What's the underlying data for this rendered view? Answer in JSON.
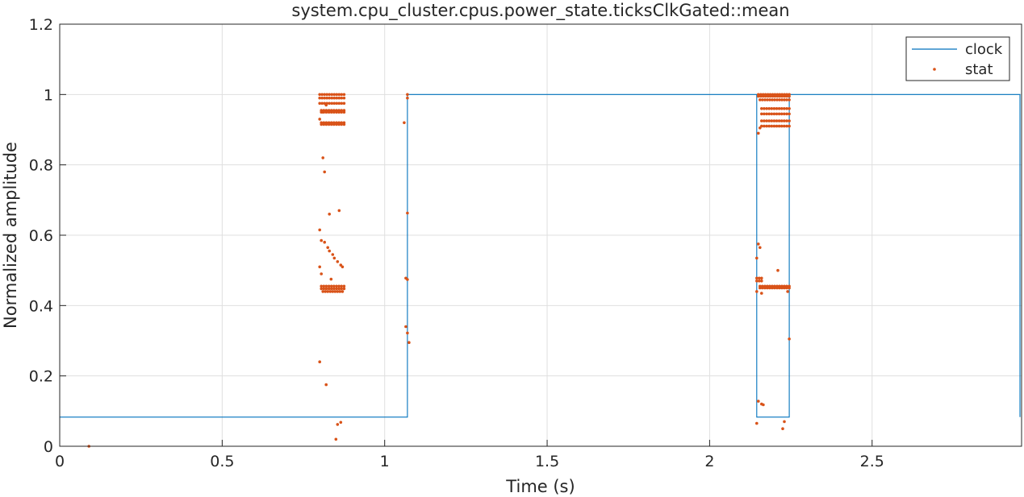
{
  "chart_data": {
    "type": "line",
    "title": "system.cpu_cluster.cpus.power_state.ticksClkGated::mean",
    "xlabel": "Time (s)",
    "ylabel": "Normalized amplitude",
    "xlim": [
      0,
      2.96
    ],
    "ylim": [
      0,
      1.2
    ],
    "grid": true,
    "legend_position": "top-right",
    "x_ticks": [
      "0",
      "0.5",
      "1",
      "1.5",
      "2",
      "2.5"
    ],
    "y_ticks": [
      "0",
      "0.2",
      "0.4",
      "0.6",
      "0.8",
      "1",
      "1.2"
    ],
    "x_tick_values": [
      0,
      0.5,
      1,
      1.5,
      2,
      2.5
    ],
    "y_tick_values": [
      0,
      0.2,
      0.4,
      0.6,
      0.8,
      1.0,
      1.2
    ],
    "colors": {
      "clock": "#0072bd",
      "stat": "#d95319",
      "grid": "#dfdfdf",
      "axis": "#262626"
    },
    "series": [
      {
        "name": "clock",
        "kind": "step",
        "x": [
          0,
          1.07,
          1.07,
          2.145,
          2.145,
          2.245,
          2.245,
          2.955,
          2.955
        ],
        "y": [
          0.083,
          0.083,
          1.0,
          1.0,
          0.083,
          0.083,
          1.0,
          1.0,
          0.083
        ]
      },
      {
        "name": "stat",
        "kind": "scatter",
        "points": [
          [
            0.09,
            0.0
          ],
          [
            0.8,
            0.24
          ],
          [
            0.81,
            0.82
          ],
          [
            0.815,
            0.78
          ],
          [
            0.82,
            0.175
          ],
          [
            0.83,
            0.66
          ],
          [
            0.86,
            0.67
          ],
          [
            0.8,
            0.615
          ],
          [
            0.805,
            0.585
          ],
          [
            0.815,
            0.58
          ],
          [
            0.825,
            0.565
          ],
          [
            0.83,
            0.555
          ],
          [
            0.84,
            0.545
          ],
          [
            0.845,
            0.535
          ],
          [
            0.855,
            0.525
          ],
          [
            0.865,
            0.515
          ],
          [
            0.87,
            0.51
          ],
          [
            0.8,
            0.51
          ],
          [
            0.805,
            0.49
          ],
          [
            0.835,
            0.475
          ],
          [
            0.85,
            0.02
          ],
          [
            0.855,
            0.062
          ],
          [
            0.865,
            0.068
          ],
          [
            0.8,
            0.93
          ],
          [
            0.81,
            0.95
          ],
          [
            0.82,
            0.97
          ],
          [
            1.06,
            0.92
          ],
          [
            1.07,
            1.0
          ],
          [
            1.07,
            0.99
          ],
          [
            1.07,
            0.663
          ],
          [
            1.065,
            0.478
          ],
          [
            1.07,
            0.474
          ],
          [
            1.065,
            0.34
          ],
          [
            1.07,
            0.322
          ],
          [
            1.075,
            0.295
          ],
          [
            2.145,
            0.065
          ],
          [
            2.15,
            0.128
          ],
          [
            2.16,
            0.12
          ],
          [
            2.165,
            0.118
          ],
          [
            2.21,
            0.5
          ],
          [
            2.145,
            0.535
          ],
          [
            2.15,
            0.575
          ],
          [
            2.155,
            0.565
          ],
          [
            2.145,
            0.44
          ],
          [
            2.16,
            0.435
          ],
          [
            2.225,
            0.05
          ],
          [
            2.23,
            0.07
          ],
          [
            2.24,
            0.44
          ],
          [
            2.245,
            0.305
          ],
          [
            2.15,
            0.89
          ],
          [
            2.155,
            0.905
          ]
        ],
        "bands": [
          {
            "x0": 0.8,
            "x1": 0.875,
            "y": 1.0
          },
          {
            "x0": 0.8,
            "x1": 0.875,
            "y": 0.99
          },
          {
            "x0": 0.8,
            "x1": 0.875,
            "y": 0.975
          },
          {
            "x0": 0.805,
            "x1": 0.875,
            "y": 0.955
          },
          {
            "x0": 0.805,
            "x1": 0.875,
            "y": 0.95
          },
          {
            "x0": 0.805,
            "x1": 0.875,
            "y": 0.92
          },
          {
            "x0": 0.805,
            "x1": 0.875,
            "y": 0.915
          },
          {
            "x0": 0.805,
            "x1": 0.875,
            "y": 0.455
          },
          {
            "x0": 0.805,
            "x1": 0.875,
            "y": 0.448
          },
          {
            "x0": 0.81,
            "x1": 0.87,
            "y": 0.44
          },
          {
            "x0": 2.15,
            "x1": 2.245,
            "y": 1.0
          },
          {
            "x0": 2.15,
            "x1": 2.245,
            "y": 0.995
          },
          {
            "x0": 2.155,
            "x1": 2.245,
            "y": 0.985
          },
          {
            "x0": 2.16,
            "x1": 2.245,
            "y": 0.96
          },
          {
            "x0": 2.16,
            "x1": 2.245,
            "y": 0.945
          },
          {
            "x0": 2.16,
            "x1": 2.245,
            "y": 0.925
          },
          {
            "x0": 2.16,
            "x1": 2.245,
            "y": 0.91
          },
          {
            "x0": 2.145,
            "x1": 2.16,
            "y": 0.478
          },
          {
            "x0": 2.145,
            "x1": 2.16,
            "y": 0.47
          },
          {
            "x0": 2.155,
            "x1": 2.245,
            "y": 0.455
          },
          {
            "x0": 2.155,
            "x1": 2.245,
            "y": 0.45
          }
        ]
      }
    ]
  }
}
